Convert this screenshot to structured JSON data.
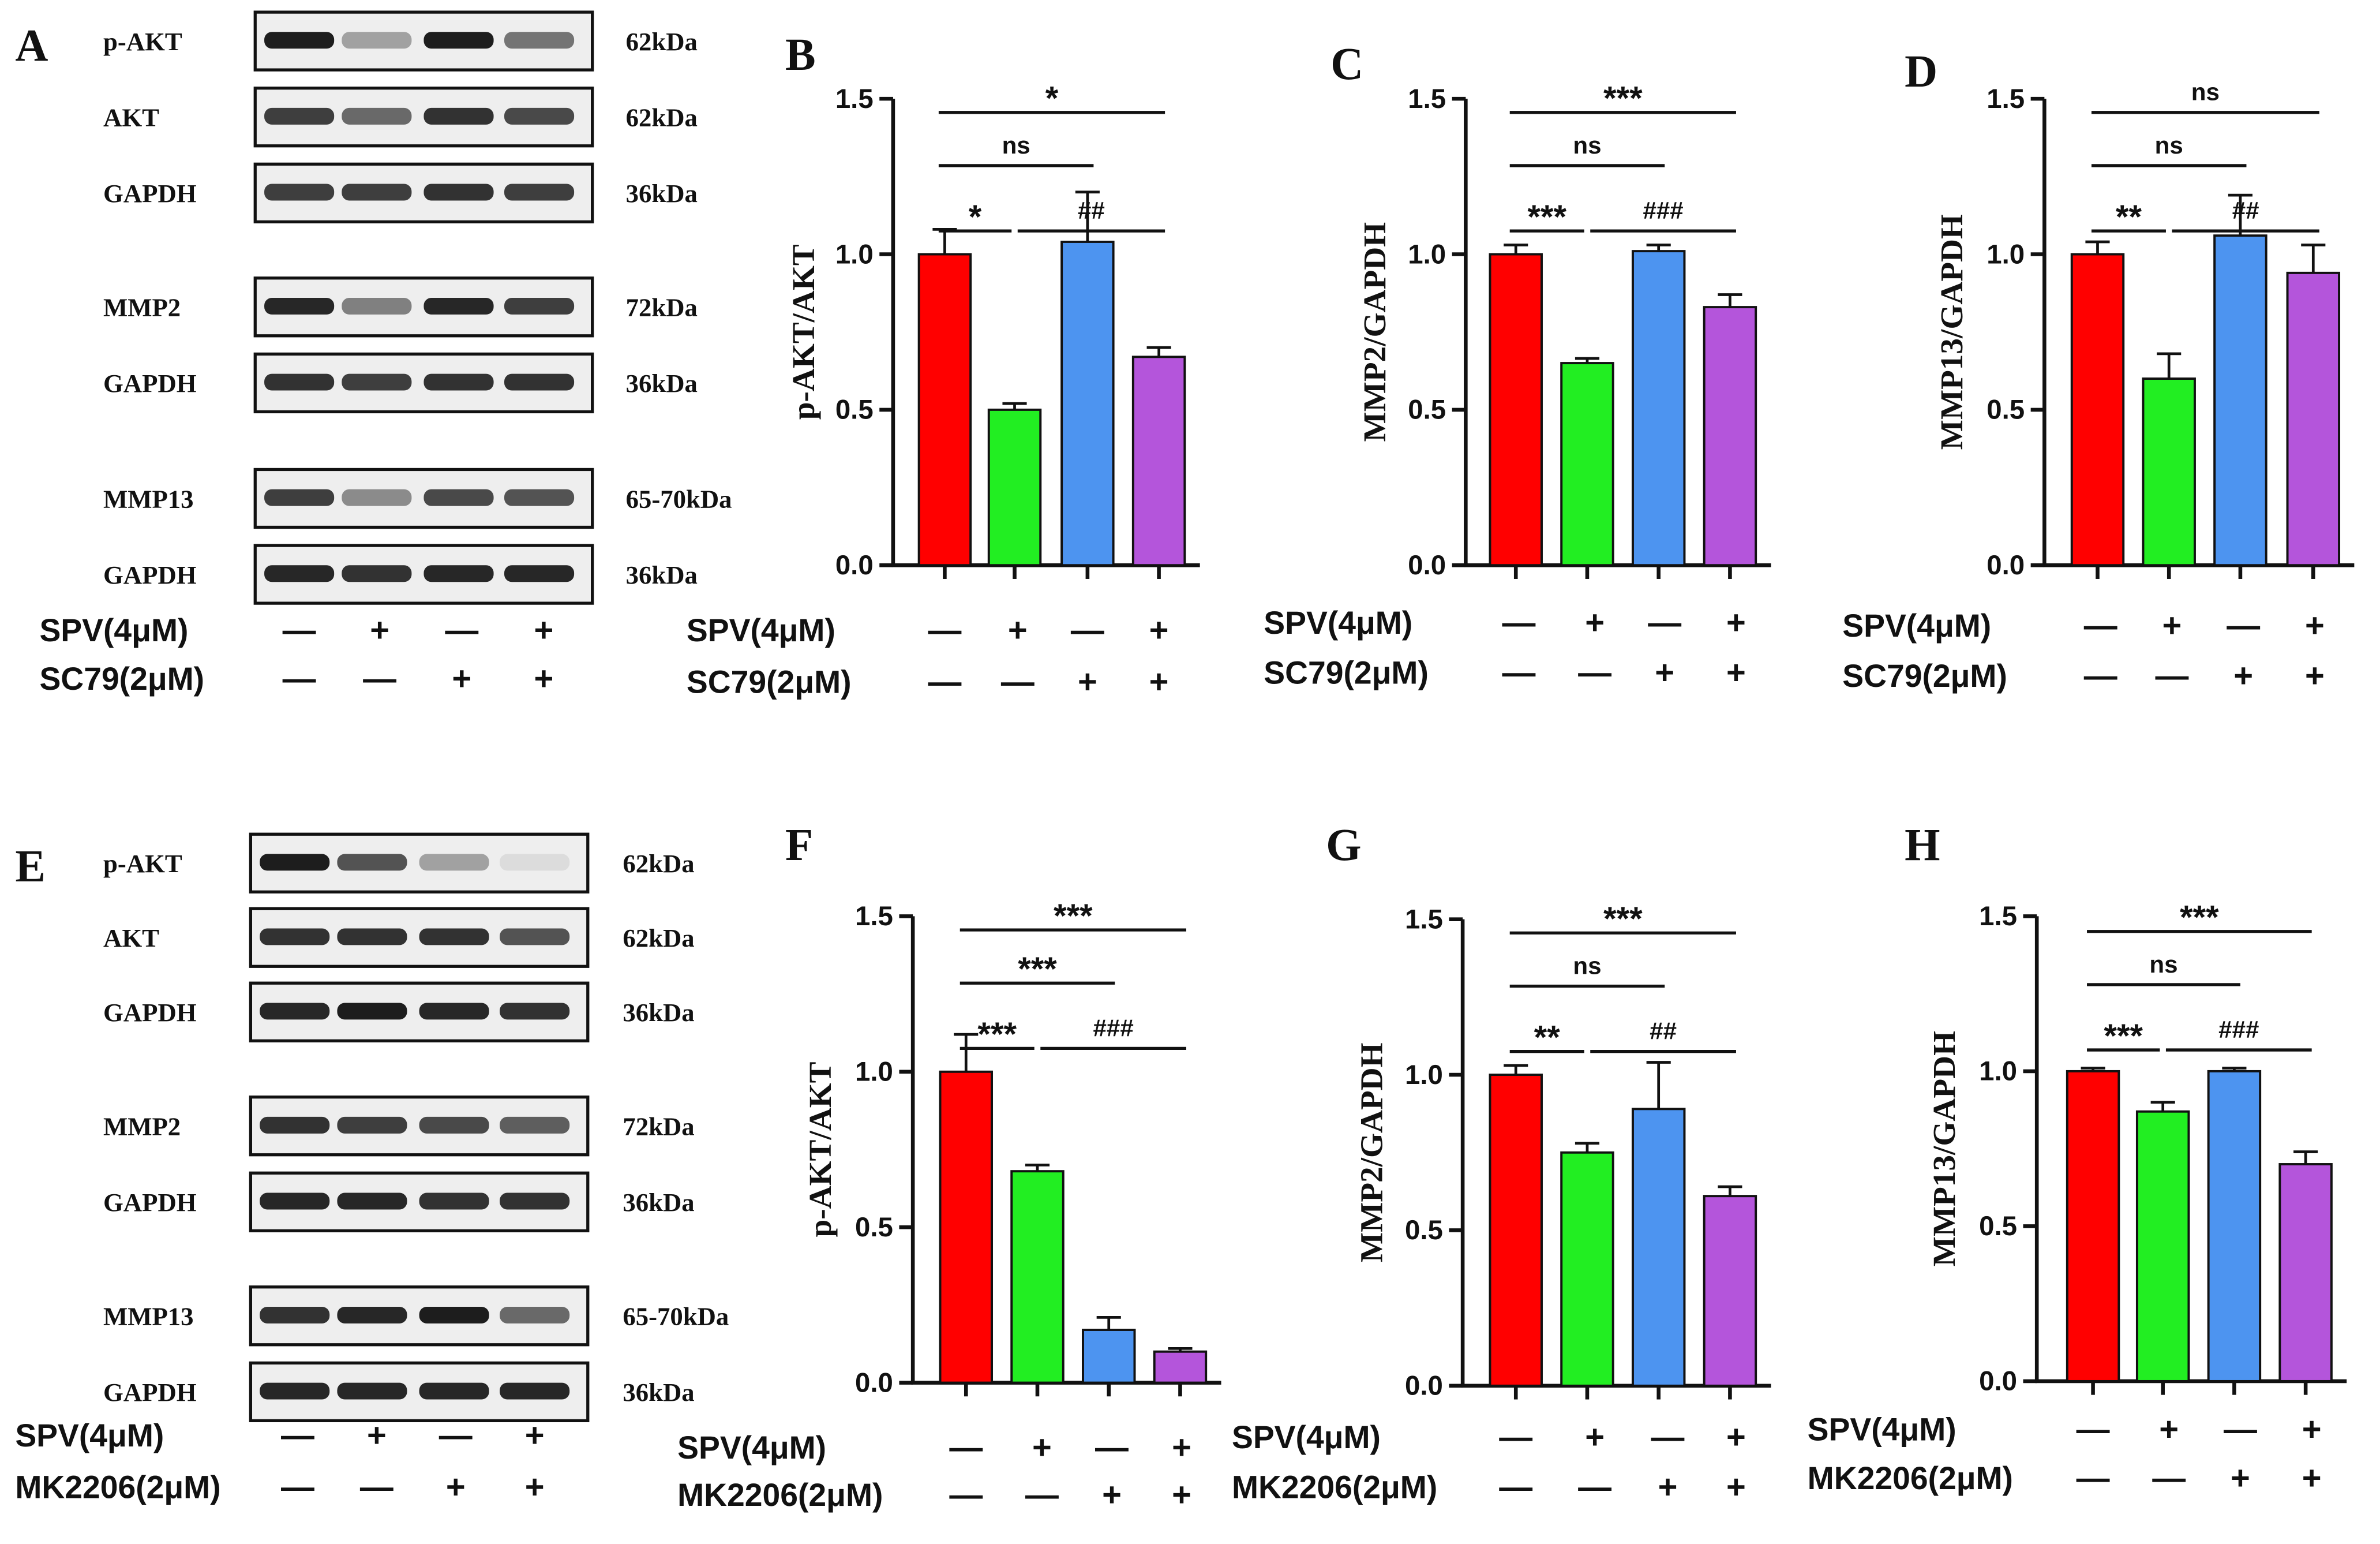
{
  "blot_panels": [
    {
      "letter": "A",
      "rows": [
        {
          "protein": "p-AKT",
          "kda": "62kDa",
          "intensity": [
            0.95,
            0.35,
            0.95,
            0.55
          ],
          "group": 0
        },
        {
          "protein": "AKT",
          "kda": "62kDa",
          "intensity": [
            0.8,
            0.6,
            0.85,
            0.75
          ],
          "group": 0
        },
        {
          "protein": "GAPDH",
          "kda": "36kDa",
          "intensity": [
            0.8,
            0.8,
            0.85,
            0.8
          ],
          "group": 0
        },
        {
          "protein": "MMP2",
          "kda": "72kDa",
          "intensity": [
            0.9,
            0.5,
            0.9,
            0.8
          ],
          "group": 1
        },
        {
          "protein": "GAPDH",
          "kda": "36kDa",
          "intensity": [
            0.85,
            0.8,
            0.85,
            0.85
          ],
          "group": 1
        },
        {
          "protein": "MMP13",
          "kda": "65-70kDa",
          "intensity": [
            0.8,
            0.45,
            0.75,
            0.7
          ],
          "group": 2
        },
        {
          "protein": "GAPDH",
          "kda": "36kDa",
          "intensity": [
            0.9,
            0.85,
            0.9,
            0.9
          ],
          "group": 2
        }
      ],
      "treatments": [
        {
          "label": "SPV(4μM)",
          "symbols": [
            "—",
            "+",
            "—",
            "+"
          ]
        },
        {
          "label": "SC79(2μM)",
          "symbols": [
            "—",
            "—",
            "+",
            "+"
          ]
        }
      ]
    },
    {
      "letter": "E",
      "rows": [
        {
          "protein": "p-AKT",
          "kda": "62kDa",
          "intensity": [
            0.95,
            0.7,
            0.35,
            0.08
          ],
          "group": 0
        },
        {
          "protein": "AKT",
          "kda": "62kDa",
          "intensity": [
            0.85,
            0.85,
            0.85,
            0.7
          ],
          "group": 0
        },
        {
          "protein": "GAPDH",
          "kda": "36kDa",
          "intensity": [
            0.9,
            0.95,
            0.9,
            0.85
          ],
          "group": 0
        },
        {
          "protein": "MMP2",
          "kda": "72kDa",
          "intensity": [
            0.85,
            0.8,
            0.75,
            0.65
          ],
          "group": 1
        },
        {
          "protein": "GAPDH",
          "kda": "36kDa",
          "intensity": [
            0.9,
            0.9,
            0.85,
            0.85
          ],
          "group": 1
        },
        {
          "protein": "MMP13",
          "kda": "65-70kDa",
          "intensity": [
            0.85,
            0.9,
            0.95,
            0.6
          ],
          "group": 2
        },
        {
          "protein": "GAPDH",
          "kda": "36kDa",
          "intensity": [
            0.9,
            0.9,
            0.9,
            0.9
          ],
          "group": 2
        }
      ],
      "treatments": [
        {
          "label": "SPV(4μM)",
          "symbols": [
            "—",
            "+",
            "—",
            "+"
          ]
        },
        {
          "label": "MK2206(2μM)",
          "symbols": [
            "—",
            "—",
            "+",
            "+"
          ]
        }
      ]
    }
  ],
  "colors": [
    "#ff0000",
    "#22ee22",
    "#4d94f0",
    "#b455db"
  ],
  "chart_data": [
    {
      "letter": "B",
      "type": "bar",
      "ylabel": "p-AKT/AKT",
      "ylim": [
        0,
        1.5
      ],
      "yticks": [
        "0.0",
        "0.5",
        "1.0",
        "1.5"
      ],
      "values": [
        1.0,
        0.5,
        1.04,
        0.67
      ],
      "errors": [
        0.08,
        0.02,
        0.16,
        0.03
      ],
      "comparisons": [
        {
          "from": 0,
          "to": 1,
          "label": "*"
        },
        {
          "from": 1,
          "to": 3,
          "label": "##"
        },
        {
          "from": 0,
          "to": 2,
          "label": "ns"
        },
        {
          "from": 0,
          "to": 3,
          "label": "*"
        }
      ],
      "treatments": [
        {
          "label": "SPV(4μM)",
          "symbols": [
            "—",
            "+",
            "—",
            "+"
          ]
        },
        {
          "label": "SC79(2μM)",
          "symbols": [
            "—",
            "—",
            "+",
            "+"
          ]
        }
      ]
    },
    {
      "letter": "C",
      "type": "bar",
      "ylabel": "MMP2/GAPDH",
      "ylim": [
        0,
        1.5
      ],
      "yticks": [
        "0.0",
        "0.5",
        "1.0",
        "1.5"
      ],
      "values": [
        1.0,
        0.65,
        1.01,
        0.83
      ],
      "errors": [
        0.03,
        0.015,
        0.02,
        0.04
      ],
      "comparisons": [
        {
          "from": 0,
          "to": 1,
          "label": "***"
        },
        {
          "from": 1,
          "to": 3,
          "label": "###"
        },
        {
          "from": 0,
          "to": 2,
          "label": "ns"
        },
        {
          "from": 0,
          "to": 3,
          "label": "***"
        }
      ],
      "treatments": [
        {
          "label": "SPV(4μM)",
          "symbols": [
            "—",
            "+",
            "—",
            "+"
          ]
        },
        {
          "label": "SC79(2μM)",
          "symbols": [
            "—",
            "—",
            "+",
            "+"
          ]
        }
      ]
    },
    {
      "letter": "D",
      "type": "bar",
      "ylabel": "MMP13/GAPDH",
      "ylim": [
        0,
        1.5
      ],
      "yticks": [
        "0.0",
        "0.5",
        "1.0",
        "1.5"
      ],
      "values": [
        1.0,
        0.6,
        1.06,
        0.94
      ],
      "errors": [
        0.04,
        0.08,
        0.13,
        0.09
      ],
      "comparisons": [
        {
          "from": 0,
          "to": 1,
          "label": "**"
        },
        {
          "from": 1,
          "to": 3,
          "label": "##"
        },
        {
          "from": 0,
          "to": 2,
          "label": "ns"
        },
        {
          "from": 0,
          "to": 3,
          "label": "ns"
        }
      ],
      "treatments": [
        {
          "label": "SPV(4μM)",
          "symbols": [
            "—",
            "+",
            "—",
            "+"
          ]
        },
        {
          "label": "SC79(2μM)",
          "symbols": [
            "—",
            "—",
            "+",
            "+"
          ]
        }
      ]
    },
    {
      "letter": "F",
      "type": "bar",
      "ylabel": "p-AKT/AKT",
      "ylim": [
        0,
        1.5
      ],
      "yticks": [
        "0.0",
        "0.5",
        "1.0",
        "1.5"
      ],
      "values": [
        1.0,
        0.68,
        0.17,
        0.1
      ],
      "errors": [
        0.12,
        0.02,
        0.04,
        0.01
      ],
      "comparisons": [
        {
          "from": 0,
          "to": 1,
          "label": "***"
        },
        {
          "from": 1,
          "to": 3,
          "label": "###"
        },
        {
          "from": 0,
          "to": 2,
          "label": "***"
        },
        {
          "from": 0,
          "to": 3,
          "label": "***"
        }
      ],
      "treatments": [
        {
          "label": "SPV(4μM)",
          "symbols": [
            "—",
            "+",
            "—",
            "+"
          ]
        },
        {
          "label": "MK2206(2μM)",
          "symbols": [
            "—",
            "—",
            "+",
            "+"
          ]
        }
      ]
    },
    {
      "letter": "G",
      "type": "bar",
      "ylabel": "MMP2/GAPDH",
      "ylim": [
        0,
        1.5
      ],
      "yticks": [
        "0.0",
        "0.5",
        "1.0",
        "1.5"
      ],
      "values": [
        1.0,
        0.75,
        0.89,
        0.61
      ],
      "errors": [
        0.03,
        0.03,
        0.15,
        0.03
      ],
      "comparisons": [
        {
          "from": 0,
          "to": 1,
          "label": "**"
        },
        {
          "from": 1,
          "to": 3,
          "label": "##"
        },
        {
          "from": 0,
          "to": 2,
          "label": "ns"
        },
        {
          "from": 0,
          "to": 3,
          "label": "***"
        }
      ],
      "treatments": [
        {
          "label": "SPV(4μM)",
          "symbols": [
            "—",
            "+",
            "—",
            "+"
          ]
        },
        {
          "label": "MK2206(2μM)",
          "symbols": [
            "—",
            "—",
            "+",
            "+"
          ]
        }
      ]
    },
    {
      "letter": "H",
      "type": "bar",
      "ylabel": "MMP13/GAPDH",
      "ylim": [
        0,
        1.5
      ],
      "yticks": [
        "0.0",
        "0.5",
        "1.0",
        "1.5"
      ],
      "values": [
        1.0,
        0.87,
        1.0,
        0.7
      ],
      "errors": [
        0.01,
        0.03,
        0.01,
        0.04
      ],
      "comparisons": [
        {
          "from": 0,
          "to": 1,
          "label": "***"
        },
        {
          "from": 1,
          "to": 3,
          "label": "###"
        },
        {
          "from": 0,
          "to": 2,
          "label": "ns"
        },
        {
          "from": 0,
          "to": 3,
          "label": "***"
        }
      ],
      "treatments": [
        {
          "label": "SPV(4μM)",
          "symbols": [
            "—",
            "+",
            "—",
            "+"
          ]
        },
        {
          "label": "MK2206(2μM)",
          "symbols": [
            "—",
            "—",
            "+",
            "+"
          ]
        }
      ]
    }
  ]
}
